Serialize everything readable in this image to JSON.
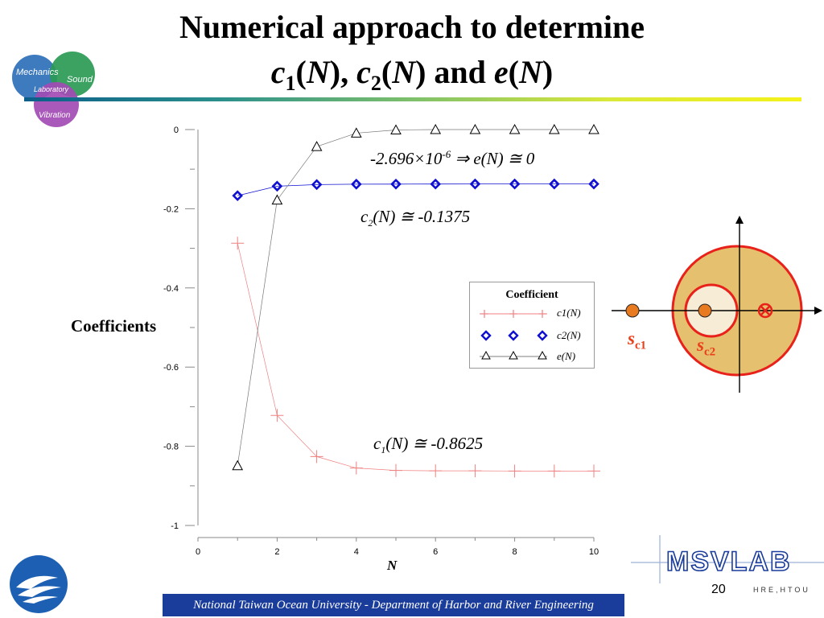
{
  "title": {
    "line1": "Numerical approach to determine",
    "line2": "c1(N), c2(N) and e(N)"
  },
  "logo": {
    "words": [
      "Mechanics",
      "Sound",
      "Laboratory",
      "Vibration"
    ]
  },
  "annotations": {
    "e": "-2.696×10-6 ⇒ e(N) ≅ 0",
    "c2": "c2(N) ≅ -0.1375",
    "c1": "c1(N) ≅ -0.8625"
  },
  "schematic": {
    "labels": [
      "sc1",
      "sc2"
    ],
    "colors": {
      "outer_fill": "#e5c06e",
      "inner_fill": "#f7ecd6",
      "ring": "#e8221b",
      "marker": "#e87a20"
    }
  },
  "page_number": "20",
  "brand": {
    "name": "MSVLAB",
    "sub": "HRE,HTOU"
  },
  "footer_text": "National Taiwan Ocean University - Department of Harbor and River Engineering",
  "chart_data": {
    "type": "line",
    "xlabel": "N",
    "ylabel": "Coefficients",
    "xlim": [
      0,
      10
    ],
    "ylim": [
      -1,
      0
    ],
    "x_ticks": [
      "0",
      "2",
      "4",
      "6",
      "8",
      "10"
    ],
    "y_ticks": [
      "0",
      "-0.2",
      "-0.4",
      "-0.6",
      "-0.8",
      "-1"
    ],
    "grid": false,
    "legend": {
      "title": "Coefficient",
      "placement": "center-right"
    },
    "x": [
      1,
      2,
      3,
      4,
      5,
      6,
      7,
      8,
      9,
      10
    ],
    "series": [
      {
        "name": "c1(N)",
        "marker": "plus",
        "color": "#f08080",
        "values": [
          -0.287,
          -0.722,
          -0.826,
          -0.855,
          -0.861,
          -0.862,
          -0.862,
          -0.8625,
          -0.8625,
          -0.8625
        ]
      },
      {
        "name": "c2(N)",
        "marker": "diamond",
        "color": "#1010d0",
        "values": [
          -0.167,
          -0.143,
          -0.139,
          -0.138,
          -0.1378,
          -0.1376,
          -0.1375,
          -0.1375,
          -0.1375,
          -0.1375
        ]
      },
      {
        "name": "e(N)",
        "marker": "triangle",
        "color": "#000000",
        "values": [
          -0.849,
          -0.178,
          -0.043,
          -0.009,
          -0.001,
          0,
          0,
          0,
          0,
          0
        ]
      }
    ]
  }
}
